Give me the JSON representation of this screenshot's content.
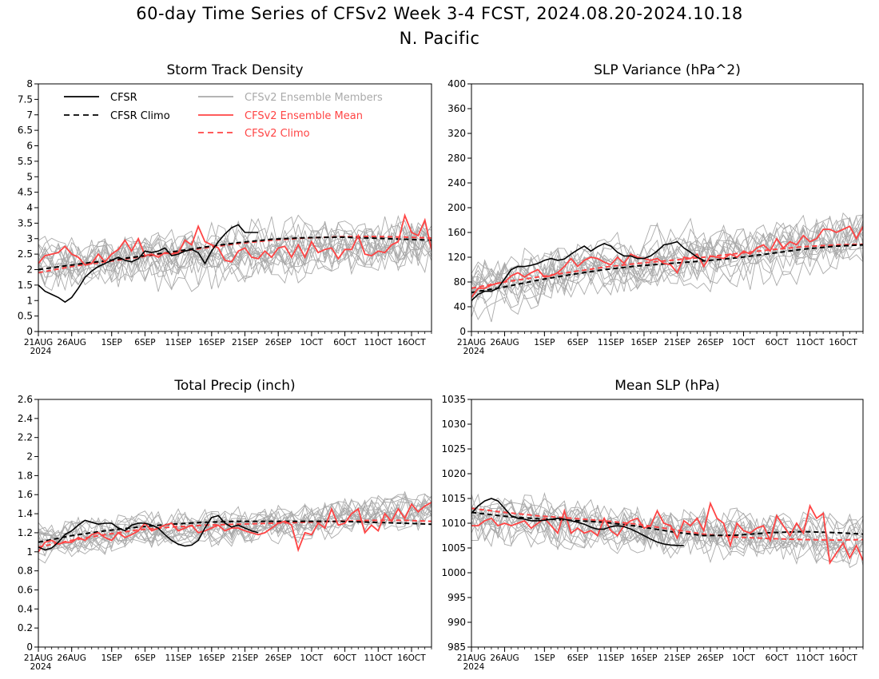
{
  "figure": {
    "title_line1": "60-day Time Series of CFSv2 Week 3-4 FCST, 2024.08.20-2024.10.18",
    "title_line2": "N. Pacific"
  },
  "legend": [
    {
      "label": "CFSR",
      "color": "#000000",
      "style": "solid"
    },
    {
      "label": "CFSR Climo",
      "color": "#000000",
      "style": "dashed"
    },
    {
      "label": "CFSv2 Ensemble Members",
      "color": "#aaaaaa",
      "style": "solid"
    },
    {
      "label": "CFSv2 Ensemble Mean",
      "color": "#ff4444",
      "style": "solid"
    },
    {
      "label": "CFSv2 Climo",
      "color": "#ff4444",
      "style": "dashed"
    }
  ],
  "x_axis": {
    "day_count": 59,
    "tick_days": [
      0,
      5,
      11,
      16,
      21,
      26,
      31,
      36,
      41,
      46,
      51,
      56
    ],
    "tick_labels": [
      "21AUG",
      "26AUG",
      "1SEP",
      "6SEP",
      "11SEP",
      "16SEP",
      "21SEP",
      "26SEP",
      "1OCT",
      "6OCT",
      "11OCT",
      "16OCT"
    ],
    "year_label": "2024"
  },
  "chart_data": [
    {
      "type": "line",
      "title": "Storm Track Density",
      "ylim": [
        0,
        8
      ],
      "yticks": [
        0,
        0.5,
        1,
        1.5,
        2,
        2.5,
        3,
        3.5,
        4,
        4.5,
        5,
        5.5,
        6,
        6.5,
        7,
        7.5,
        8
      ],
      "ytick_labels": [
        "0",
        "0.5",
        "1",
        "1.5",
        "2",
        "2.5",
        "3",
        "3.5",
        "4",
        "4.5",
        "5",
        "5.5",
        "6",
        "6.5",
        "7",
        "7.5",
        "8"
      ],
      "show_legend": true,
      "cfsr": [
        1.5,
        1.3,
        1.2,
        1.1,
        0.95,
        1.1,
        1.4,
        1.75,
        1.95,
        2.1,
        2.2,
        2.3,
        2.4,
        2.3,
        2.25,
        2.35,
        2.6,
        2.55,
        2.6,
        2.7,
        2.45,
        2.5,
        2.6,
        2.65,
        2.55,
        2.2,
        2.6,
        2.9,
        3.15,
        3.35,
        3.45,
        3.2,
        3.2,
        3.2
      ],
      "cfsr_climo_x": [
        0,
        5,
        10,
        15,
        20,
        25,
        30,
        35,
        40,
        45,
        50,
        55,
        59
      ],
      "cfsr_climo": [
        2.0,
        2.15,
        2.28,
        2.42,
        2.57,
        2.73,
        2.87,
        2.98,
        3.03,
        3.05,
        3.02,
        2.98,
        2.95
      ],
      "cfsv2_climo_x": [
        0,
        5,
        10,
        15,
        20,
        25,
        30,
        35,
        40,
        45,
        50,
        55,
        59
      ],
      "cfsv2_climo": [
        1.9,
        2.1,
        2.25,
        2.4,
        2.55,
        2.7,
        2.84,
        2.95,
        3.02,
        3.06,
        3.07,
        3.05,
        3.02
      ],
      "ensemble_mean": [
        2.2,
        2.45,
        2.5,
        2.55,
        2.75,
        2.5,
        2.4,
        2.15,
        2.2,
        2.5,
        2.25,
        2.5,
        2.65,
        2.95,
        2.6,
        3.0,
        2.45,
        2.5,
        2.4,
        2.55,
        2.5,
        2.55,
        2.95,
        2.8,
        3.4,
        2.9,
        2.8,
        2.7,
        2.3,
        2.25,
        2.6,
        2.7,
        2.4,
        2.35,
        2.6,
        2.4,
        2.7,
        2.75,
        2.4,
        2.8,
        2.4,
        2.9,
        2.55,
        2.65,
        2.7,
        2.35,
        2.65,
        2.65,
        3.1,
        2.5,
        2.45,
        2.6,
        2.55,
        2.8,
        2.9,
        3.75,
        3.2,
        3.1,
        3.6,
        2.65
      ],
      "members": {
        "center_start": 2.2,
        "center_end": 2.9,
        "spread": 0.75,
        "count": 16,
        "noise": 0.6
      }
    },
    {
      "type": "line",
      "title": "SLP Variance (hPa^2)",
      "ylim": [
        0,
        400
      ],
      "yticks": [
        0,
        40,
        80,
        120,
        160,
        200,
        240,
        280,
        320,
        360,
        400
      ],
      "ytick_labels": [
        "0",
        "40",
        "80",
        "120",
        "160",
        "200",
        "240",
        "280",
        "320",
        "360",
        "400"
      ],
      "show_legend": false,
      "cfsr": [
        50,
        60,
        65,
        65,
        70,
        85,
        100,
        105,
        105,
        107,
        110,
        115,
        118,
        115,
        117,
        125,
        132,
        138,
        130,
        137,
        142,
        138,
        128,
        122,
        122,
        118,
        118,
        122,
        130,
        140,
        142,
        145,
        135,
        128,
        120,
        115
      ],
      "cfsr_climo_x": [
        0,
        5,
        10,
        15,
        20,
        25,
        30,
        35,
        40,
        45,
        50,
        55,
        59
      ],
      "cfsr_climo": [
        63,
        72,
        83,
        92,
        100,
        106,
        110,
        114,
        119,
        126,
        133,
        138,
        140
      ],
      "cfsv2_climo_x": [
        0,
        5,
        10,
        15,
        20,
        25,
        30,
        35,
        40,
        45,
        50,
        55,
        59
      ],
      "cfsv2_climo": [
        70,
        80,
        88,
        96,
        104,
        110,
        115,
        120,
        126,
        132,
        137,
        140,
        141
      ],
      "ensemble_mean": [
        55,
        70,
        70,
        75,
        78,
        80,
        90,
        95,
        88,
        95,
        100,
        88,
        90,
        95,
        105,
        118,
        105,
        115,
        120,
        118,
        112,
        108,
        120,
        110,
        125,
        120,
        118,
        115,
        118,
        110,
        108,
        95,
        120,
        118,
        125,
        105,
        122,
        120,
        118,
        125,
        120,
        130,
        125,
        135,
        140,
        130,
        150,
        135,
        145,
        140,
        155,
        145,
        150,
        165,
        165,
        160,
        165,
        170,
        150,
        170
      ],
      "members": {
        "center_start": 70,
        "center_end": 150,
        "spread": 45,
        "count": 16,
        "noise": 30
      }
    },
    {
      "type": "line",
      "title": "Total Precip (inch)",
      "ylim": [
        0,
        2.6
      ],
      "yticks": [
        0,
        0.2,
        0.4,
        0.6,
        0.8,
        1,
        1.2,
        1.4,
        1.6,
        1.8,
        2,
        2.2,
        2.4,
        2.6
      ],
      "ytick_labels": [
        "0",
        "0.2",
        "0.4",
        "0.6",
        "0.8",
        "1",
        "1.2",
        "1.4",
        "1.6",
        "1.8",
        "2",
        "2.2",
        "2.4",
        "2.6"
      ],
      "show_legend": false,
      "cfsr": [
        1.05,
        1.02,
        1.04,
        1.1,
        1.18,
        1.22,
        1.28,
        1.33,
        1.31,
        1.29,
        1.3,
        1.3,
        1.25,
        1.22,
        1.28,
        1.3,
        1.3,
        1.28,
        1.25,
        1.18,
        1.12,
        1.08,
        1.06,
        1.07,
        1.12,
        1.25,
        1.36,
        1.38,
        1.3,
        1.26,
        1.28,
        1.25,
        1.22,
        1.2
      ],
      "cfsr_climo_x": [
        0,
        5,
        10,
        15,
        20,
        25,
        30,
        35,
        40,
        45,
        50,
        55,
        59
      ],
      "cfsr_climo": [
        1.1,
        1.17,
        1.22,
        1.26,
        1.29,
        1.31,
        1.32,
        1.32,
        1.32,
        1.32,
        1.31,
        1.3,
        1.29
      ],
      "cfsv2_climo_x": [
        0,
        5,
        10,
        15,
        20,
        25,
        30,
        35,
        40,
        45,
        50,
        55,
        59
      ],
      "cfsv2_climo": [
        1.05,
        1.12,
        1.18,
        1.23,
        1.26,
        1.28,
        1.29,
        1.3,
        1.31,
        1.32,
        1.33,
        1.33,
        1.32
      ],
      "ensemble_mean": [
        1.0,
        1.1,
        1.12,
        1.08,
        1.1,
        1.1,
        1.15,
        1.12,
        1.18,
        1.2,
        1.15,
        1.12,
        1.2,
        1.15,
        1.18,
        1.22,
        1.3,
        1.22,
        1.25,
        1.28,
        1.3,
        1.22,
        1.25,
        1.28,
        1.2,
        1.22,
        1.25,
        1.28,
        1.22,
        1.25,
        1.25,
        1.22,
        1.2,
        1.18,
        1.2,
        1.25,
        1.3,
        1.32,
        1.28,
        1.02,
        1.2,
        1.18,
        1.3,
        1.25,
        1.45,
        1.28,
        1.3,
        1.4,
        1.45,
        1.2,
        1.28,
        1.22,
        1.4,
        1.32,
        1.45,
        1.35,
        1.5,
        1.42,
        1.48,
        1.52
      ],
      "members": {
        "center_start": 1.1,
        "center_end": 1.42,
        "spread": 0.12,
        "count": 16,
        "noise": 0.14
      }
    },
    {
      "type": "line",
      "title": "Mean SLP (hPa)",
      "ylim": [
        985,
        1035
      ],
      "yticks": [
        985,
        990,
        995,
        1000,
        1005,
        1010,
        1015,
        1020,
        1025,
        1030,
        1035
      ],
      "ytick_labels": [
        "985",
        "990",
        "995",
        "1000",
        "1005",
        "1010",
        "1015",
        "1020",
        "1025",
        "1030",
        "1035"
      ],
      "show_legend": false,
      "cfsr": [
        1012,
        1013.5,
        1014.5,
        1015,
        1014.5,
        1013,
        1011.5,
        1011,
        1010.8,
        1010.5,
        1010.5,
        1010.6,
        1010.8,
        1011,
        1010.8,
        1010.5,
        1010.2,
        1009.8,
        1009.2,
        1008.8,
        1008.8,
        1009.3,
        1009.5,
        1009.3,
        1008.8,
        1008.2,
        1007.5,
        1006.8,
        1006.2,
        1005.8,
        1005.6,
        1005.5,
        1005.5
      ],
      "cfsr_climo_x": [
        0,
        5,
        10,
        15,
        20,
        25,
        30,
        35,
        40,
        45,
        50,
        55,
        59
      ],
      "cfsr_climo": [
        1012.2,
        1011.4,
        1010.9,
        1010.6,
        1010.2,
        1009.4,
        1008.3,
        1007.5,
        1007.6,
        1008.1,
        1008.3,
        1008.1,
        1007.8
      ],
      "cfsv2_climo_x": [
        0,
        5,
        10,
        15,
        20,
        25,
        30,
        35,
        40,
        45,
        50,
        55,
        59
      ],
      "cfsv2_climo": [
        1013,
        1012.2,
        1011.5,
        1011,
        1010.5,
        1009.8,
        1008.8,
        1007.8,
        1007.2,
        1006.9,
        1006.7,
        1006.6,
        1006.7
      ],
      "ensemble_mean": [
        1009.5,
        1009.5,
        1010.5,
        1011,
        1009.5,
        1010,
        1009.5,
        1010,
        1010.5,
        1009,
        1010,
        1011,
        1009.5,
        1008,
        1012.5,
        1008,
        1009,
        1008,
        1008.5,
        1007.5,
        1011,
        1008.5,
        1007.5,
        1009.5,
        1010.5,
        1011,
        1009,
        1009.5,
        1012.5,
        1010,
        1009.5,
        1007,
        1010.5,
        1009.5,
        1011,
        1008.5,
        1014,
        1011,
        1010,
        1005.5,
        1010,
        1008.5,
        1008,
        1009,
        1009.5,
        1006.5,
        1011.5,
        1009.5,
        1007.5,
        1010,
        1008,
        1013.5,
        1011,
        1012,
        1002,
        1004,
        1006,
        1003,
        1005.5,
        1002.5
      ],
      "members": {
        "center_start": 1011,
        "center_end": 1006.5,
        "spread": 3.2,
        "count": 16,
        "noise": 3.5
      }
    }
  ]
}
